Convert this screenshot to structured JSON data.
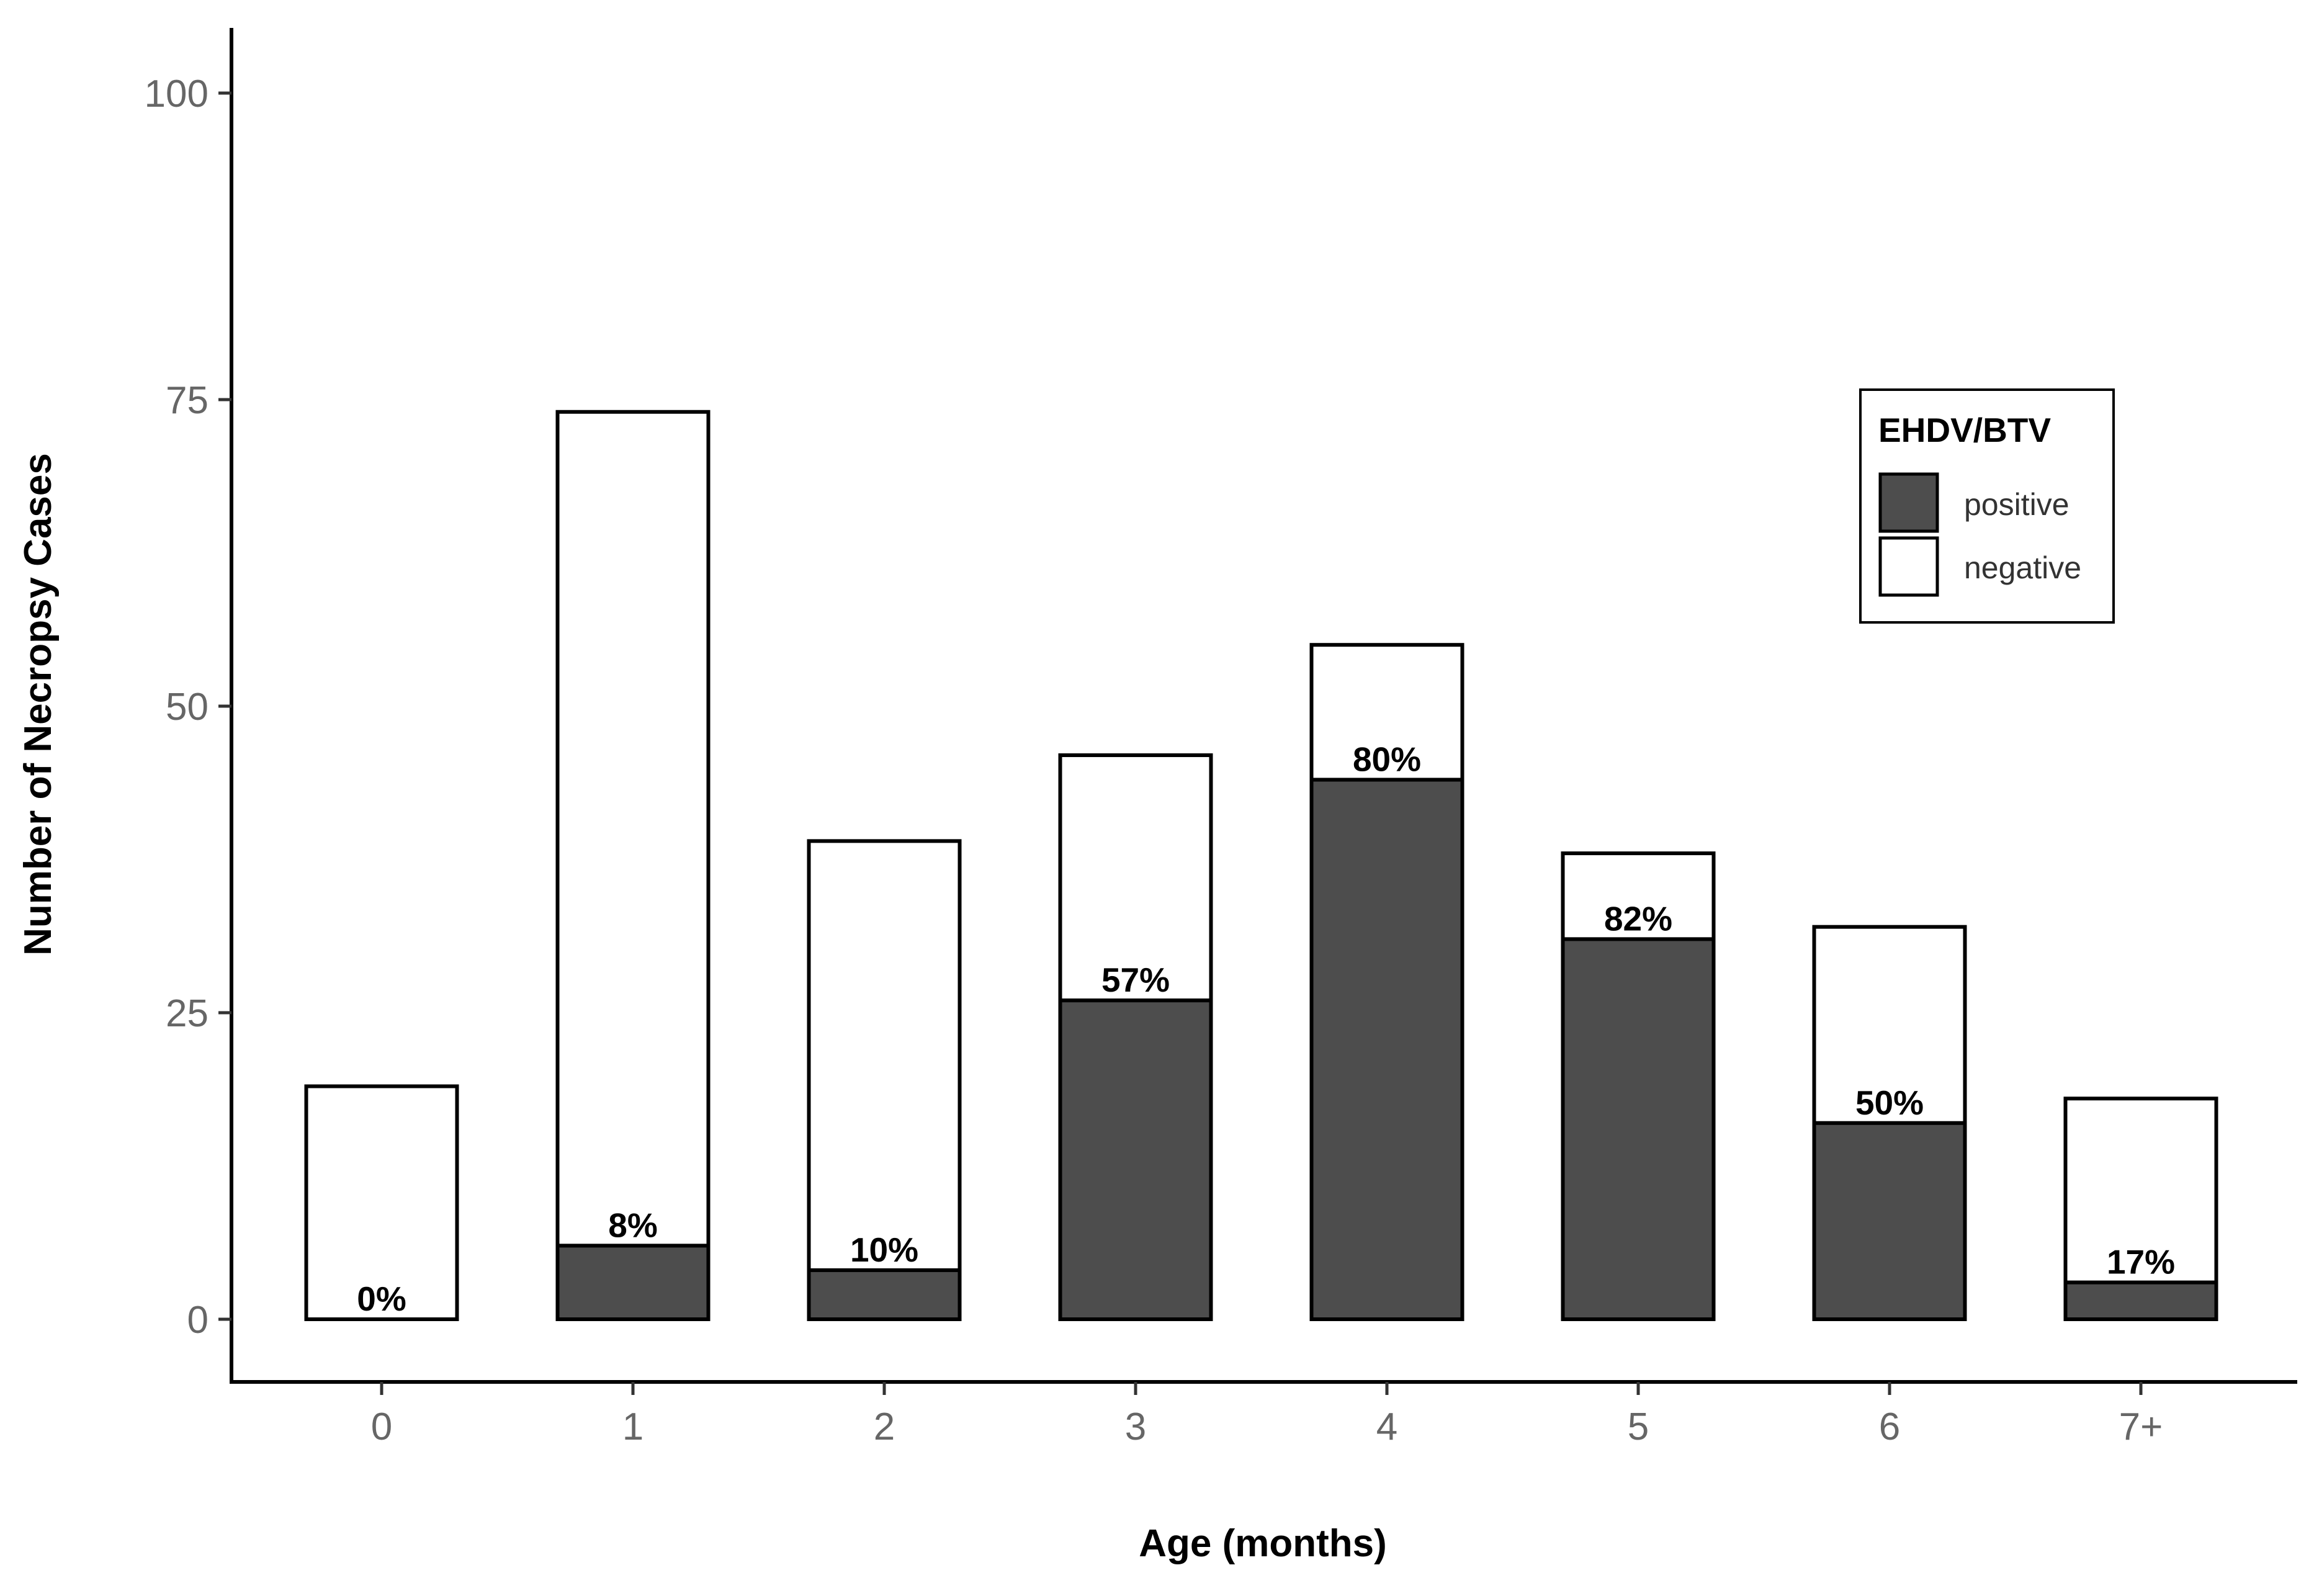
{
  "chart_data": {
    "type": "bar",
    "stacked": true,
    "xlabel": "Age (months)",
    "ylabel": "Number of Necropsy Cases",
    "categories": [
      "0",
      "1",
      "2",
      "3",
      "4",
      "5",
      "6",
      "7+"
    ],
    "series": [
      {
        "name": "positive",
        "values": [
          0,
          6,
          4,
          26,
          44,
          31,
          16,
          3
        ],
        "color": "#4d4d4d"
      },
      {
        "name": "negative",
        "values": [
          19,
          68,
          35,
          20,
          11,
          7,
          16,
          15
        ],
        "color": "#ffffff"
      }
    ],
    "totals": [
      19,
      74,
      39,
      46,
      55,
      38,
      32,
      18
    ],
    "percent_labels": [
      "0%",
      "8%",
      "10%",
      "57%",
      "80%",
      "82%",
      "50%",
      "17%"
    ],
    "yticks": [
      0,
      25,
      50,
      75,
      100
    ],
    "ytick_labels": [
      "0",
      "25",
      "50",
      "75",
      "100"
    ],
    "ylim": [
      -5,
      105
    ],
    "grid": false,
    "legend": {
      "title": "EHDV/BTV",
      "placement": "top-right",
      "entries": [
        "positive",
        "negative"
      ]
    }
  }
}
